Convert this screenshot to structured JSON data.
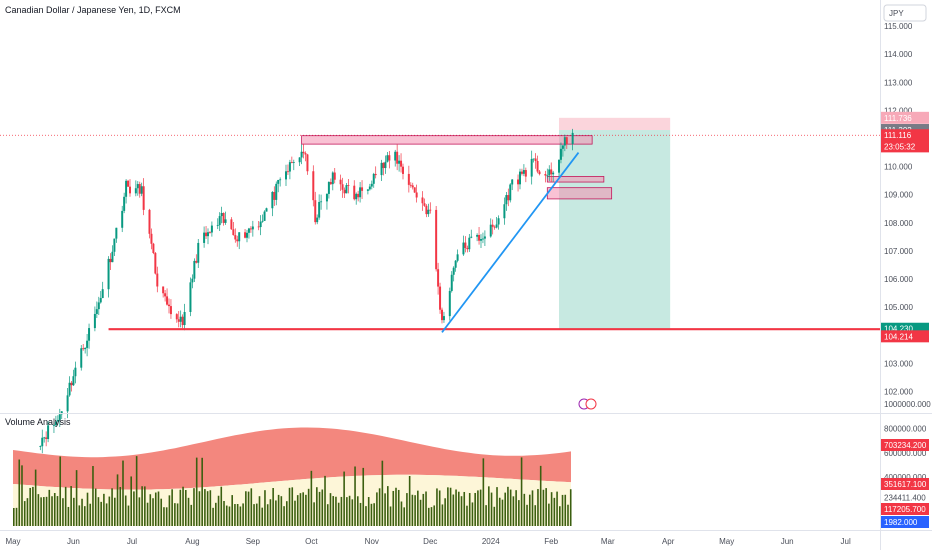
{
  "header": {
    "title": "Canadian Dollar / Japanese Yen, 1D, FXCM",
    "currency_badge": "JPY"
  },
  "chart_data": [
    {
      "type": "candlestick",
      "title": "Canadian Dollar / Japanese Yen, 1D, FXCM",
      "ylim": [
        101.0,
        115.5
      ],
      "y_ticks": [
        "115.000",
        "114.000",
        "113.000",
        "112.000",
        "111.000",
        "110.000",
        "109.000",
        "108.000",
        "107.000",
        "106.000",
        "105.000",
        "104.000",
        "103.000",
        "102.000"
      ],
      "x_ticks": [
        "May",
        "Jun",
        "Jul",
        "Aug",
        "Sep",
        "Oct",
        "Nov",
        "Dec",
        "2024",
        "Feb",
        "Mar",
        "Apr",
        "May",
        "Jun",
        "Jul"
      ],
      "price_path": [
        {
          "date": "2023-05-15",
          "close": 100.3
        },
        {
          "date": "2023-05-24",
          "close": 101.0
        },
        {
          "date": "2023-06-02",
          "close": 102.8
        },
        {
          "date": "2023-06-13",
          "close": 104.9
        },
        {
          "date": "2023-06-22",
          "close": 107.4
        },
        {
          "date": "2023-06-28",
          "close": 109.3
        },
        {
          "date": "2023-07-06",
          "close": 109.1
        },
        {
          "date": "2023-07-14",
          "close": 105.9
        },
        {
          "date": "2023-07-21",
          "close": 104.6
        },
        {
          "date": "2023-07-28",
          "close": 104.6
        },
        {
          "date": "2023-08-04",
          "close": 107.2
        },
        {
          "date": "2023-08-16",
          "close": 108.1
        },
        {
          "date": "2023-08-25",
          "close": 107.5
        },
        {
          "date": "2023-09-05",
          "close": 108.1
        },
        {
          "date": "2023-09-18",
          "close": 109.8
        },
        {
          "date": "2023-09-27",
          "close": 110.6
        },
        {
          "date": "2023-10-03",
          "close": 108.2
        },
        {
          "date": "2023-10-12",
          "close": 109.6
        },
        {
          "date": "2023-10-24",
          "close": 108.9
        },
        {
          "date": "2023-11-03",
          "close": 109.8
        },
        {
          "date": "2023-11-13",
          "close": 110.4
        },
        {
          "date": "2023-11-22",
          "close": 109.2
        },
        {
          "date": "2023-12-01",
          "close": 108.3
        },
        {
          "date": "2023-12-07",
          "close": 104.4
        },
        {
          "date": "2023-12-14",
          "close": 106.8
        },
        {
          "date": "2023-12-21",
          "close": 107.3
        },
        {
          "date": "2024-01-03",
          "close": 107.8
        },
        {
          "date": "2024-01-12",
          "close": 109.4
        },
        {
          "date": "2024-01-22",
          "close": 110.1
        },
        {
          "date": "2024-02-01",
          "close": 109.6
        },
        {
          "date": "2024-02-06",
          "close": 110.6
        },
        {
          "date": "2024-02-12",
          "close": 111.2
        }
      ],
      "price_tags": [
        {
          "value": "111.736",
          "color": "#f7a9b8"
        },
        {
          "value": "111.302",
          "color": "#787b86"
        },
        {
          "value": "111.116",
          "color": "#f23645"
        },
        {
          "value": "23:05:32",
          "color": "#f23645"
        },
        {
          "value": "104.230",
          "color": "#089981"
        },
        {
          "value": "104.214",
          "color": "#f23645"
        }
      ],
      "drawings": {
        "support_level": 104.214,
        "resistance_zone": {
          "from": "2023-09-26",
          "to": "2024-02-22",
          "low": 110.8,
          "high": 111.1
        },
        "demand_zone_1": {
          "from": "2024-01-30",
          "to": "2024-02-28",
          "low": 109.45,
          "high": 109.65
        },
        "demand_zone_2": {
          "from": "2024-01-30",
          "to": "2024-03-03",
          "low": 108.85,
          "high": 109.25
        },
        "trendline": {
          "from": {
            "date": "2023-12-07",
            "price": 104.1
          },
          "to": {
            "date": "2024-02-15",
            "price": 110.5
          }
        },
        "short_position": {
          "from": "2024-02-05",
          "to": "2024-04-02",
          "entry": 111.302,
          "stop": 111.736,
          "target": 104.23
        }
      }
    },
    {
      "type": "area",
      "title": "Volume Analysis",
      "y_ticks": [
        "1000000.000",
        "800000.000",
        "600000.000",
        "400000.000",
        "234411.400"
      ],
      "value_tags": [
        {
          "value": "703234.200",
          "color": "#f23645"
        },
        {
          "value": "351617.100",
          "color": "#f23645"
        },
        {
          "value": "117205.700",
          "color": "#f23645"
        },
        {
          "value": "1982.000",
          "color": "#2962ff"
        }
      ]
    }
  ],
  "colors": {
    "up": "#089981",
    "down": "#f23645",
    "trendline": "#2196f3",
    "zone_fill": "#f48fb1",
    "zone_stroke": "#c2185b",
    "profit_fill": "#c7e9e1",
    "loss_fill": "#fbd5dc",
    "band_fill": "#f3877e",
    "band_inner": "#fdf6d8",
    "volume_bar": "#3b5f10"
  }
}
